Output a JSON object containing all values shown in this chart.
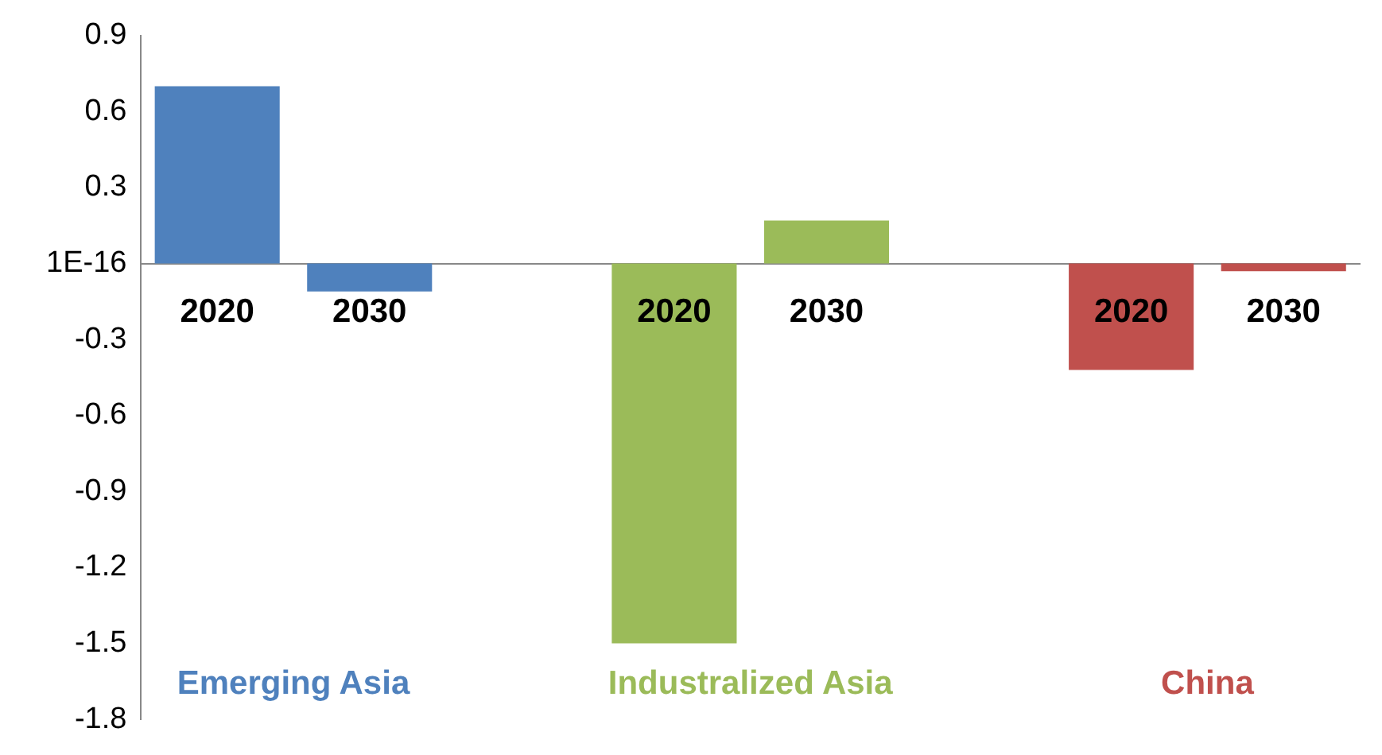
{
  "chart_data": {
    "type": "bar",
    "categories": [
      "2020",
      "2030",
      null,
      "2020",
      "2030",
      null,
      "2020",
      "2030"
    ],
    "series": [
      {
        "name": "Emerging Asia",
        "color": "#4f81bd",
        "values": [
          0.7,
          -0.11,
          null,
          null,
          null,
          null,
          null,
          null
        ]
      },
      {
        "name": "Industralized Asia",
        "color": "#9bbb59",
        "values": [
          null,
          null,
          null,
          -1.5,
          0.17,
          null,
          null,
          null
        ]
      },
      {
        "name": "China",
        "color": "#c0504d",
        "values": [
          null,
          null,
          null,
          null,
          null,
          null,
          -0.42,
          -0.03
        ]
      }
    ],
    "ylim": [
      -1.8,
      0.9
    ],
    "yticks": [
      0.9,
      0.6,
      0.3,
      {
        "value": 0,
        "label": "1E-16"
      },
      -0.3,
      -0.6,
      -0.9,
      -1.2,
      -1.5,
      -1.8
    ],
    "grid": false,
    "legend": false
  }
}
